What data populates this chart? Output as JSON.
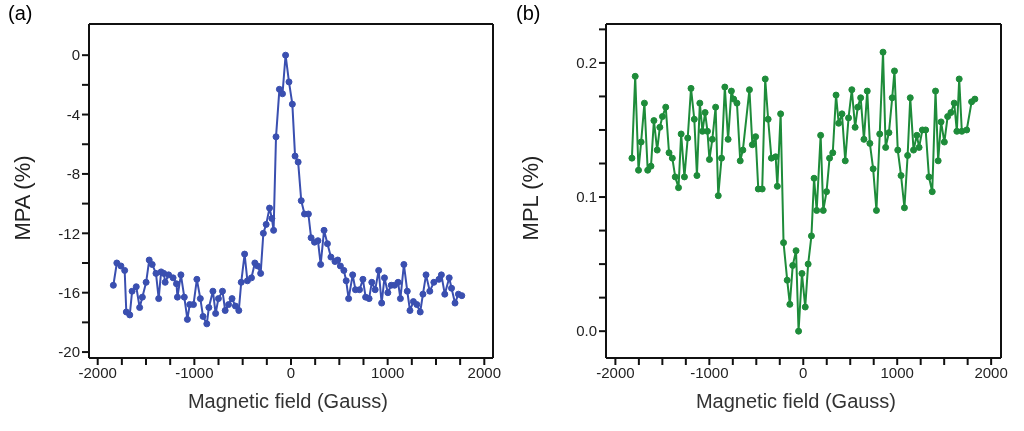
{
  "chart_data": [
    {
      "type": "line",
      "title": "(a)",
      "xlabel": "Magnetic field (Gauss)",
      "ylabel": "MPA (%)",
      "marker": "circle",
      "line_style": "solid",
      "xlim": [
        -2090,
        2090
      ],
      "ylim": [
        -20.4,
        2.1
      ],
      "xticks": [
        {
          "value": -2000,
          "label": "-2000"
        },
        {
          "value": -1750,
          "label": null
        },
        {
          "value": -1500,
          "label": null
        },
        {
          "value": -1250,
          "label": null
        },
        {
          "value": -1000,
          "label": "-1000"
        },
        {
          "value": -750,
          "label": null
        },
        {
          "value": -500,
          "label": null
        },
        {
          "value": -250,
          "label": null
        },
        0,
        {
          "value": 250,
          "label": null
        },
        {
          "value": 500,
          "label": null
        },
        {
          "value": 750,
          "label": null
        },
        1000,
        {
          "value": 1250,
          "label": null
        },
        {
          "value": 1500,
          "label": null
        },
        {
          "value": 1750,
          "label": null
        },
        2000
      ],
      "yticks": [
        0,
        {
          "value": -2,
          "label": null
        },
        -4,
        {
          "value": -6,
          "label": null
        },
        -8,
        {
          "value": -10,
          "label": null
        },
        -12,
        {
          "value": -14,
          "label": null
        },
        -16,
        {
          "value": -18,
          "label": null
        },
        -20
      ],
      "series": [
        {
          "color": "#3a4fb0",
          "x": [
            -1838,
            -1802,
            -1760,
            -1721,
            -1704,
            -1668,
            -1644,
            -1601,
            -1566,
            -1538,
            -1499,
            -1467,
            -1436,
            -1397,
            -1369,
            -1344,
            -1316,
            -1302,
            -1266,
            -1220,
            -1185,
            -1175,
            -1139,
            -1104,
            -1072,
            -1048,
            -1009,
            -974,
            -938,
            -910,
            -871,
            -850,
            -808,
            -780,
            -751,
            -709,
            -681,
            -646,
            -610,
            -575,
            -540,
            -515,
            -480,
            -451,
            -409,
            -374,
            -346,
            -314,
            -286,
            -257,
            -222,
            -198,
            -180,
            -155,
            -120,
            -88,
            -56,
            -21,
            14,
            42,
            74,
            106,
            140,
            180,
            208,
            243,
            279,
            307,
            342,
            377,
            413,
            455,
            483,
            511,
            547,
            571,
            596,
            638,
            667,
            709,
            744,
            772,
            808,
            836,
            871,
            907,
            938,
            967,
            1002,
            1037,
            1072,
            1108,
            1132,
            1168,
            1203,
            1231,
            1266,
            1302,
            1337,
            1365,
            1397,
            1436,
            1478,
            1531,
            1556,
            1591,
            1637,
            1661,
            1697,
            1732,
            1767
          ],
          "values": [
            -15.5,
            -14.0,
            -14.2,
            -14.5,
            -17.3,
            -17.5,
            -15.9,
            -15.6,
            -17.0,
            -16.3,
            -15.3,
            -13.8,
            -14.1,
            -14.7,
            -16.4,
            -14.6,
            -14.7,
            -15.3,
            -14.8,
            -15.0,
            -15.4,
            -16.3,
            -14.8,
            -16.3,
            -17.8,
            -16.8,
            -16.8,
            -15.1,
            -16.4,
            -17.6,
            -18.1,
            -17.0,
            -15.9,
            -17.4,
            -16.4,
            -15.9,
            -17.2,
            -16.8,
            -16.4,
            -16.9,
            -17.2,
            -15.3,
            -13.4,
            -15.2,
            -15.0,
            -14.0,
            -14.2,
            -14.7,
            -12.0,
            -11.4,
            -10.3,
            -11.0,
            -11.8,
            -5.5,
            -2.3,
            -2.6,
            0,
            -1.8,
            -3.3,
            -6.8,
            -7.2,
            -9.8,
            -10.7,
            -10.7,
            -12.3,
            -12.6,
            -12.5,
            -14.1,
            -11.8,
            -12.7,
            -13.6,
            -13.9,
            -13.8,
            -14.2,
            -14.5,
            -15.2,
            -16.4,
            -14.8,
            -15.8,
            -15.8,
            -15.1,
            -16.3,
            -16.4,
            -15.3,
            -15.8,
            -14.5,
            -16.7,
            -15.0,
            -16.0,
            -15.5,
            -15.5,
            -15.3,
            -16.4,
            -14.1,
            -15.9,
            -17.2,
            -16.6,
            -16.8,
            -17.3,
            -16.1,
            -14.8,
            -15.9,
            -15.3,
            -15.1,
            -14.8,
            -16.1,
            -15.0,
            -15.7,
            -16.7,
            -16.1,
            -16.2
          ]
        }
      ]
    },
    {
      "type": "line",
      "title": "(b)",
      "xlabel": "Magnetic field (Gauss)",
      "ylabel": "MPL (%)",
      "marker": "circle",
      "line_style": "solid",
      "xlim": [
        -2100,
        2105
      ],
      "ylim": [
        -0.02,
        0.229
      ],
      "xticks": [
        {
          "value": -2000,
          "label": "-2000"
        },
        {
          "value": -1750,
          "label": null
        },
        {
          "value": -1500,
          "label": null
        },
        {
          "value": -1250,
          "label": null
        },
        {
          "value": -1000,
          "label": "-1000"
        },
        {
          "value": -750,
          "label": null
        },
        {
          "value": -500,
          "label": null
        },
        {
          "value": -250,
          "label": null
        },
        0,
        {
          "value": 250,
          "label": null
        },
        {
          "value": 500,
          "label": null
        },
        {
          "value": 750,
          "label": null
        },
        1000,
        {
          "value": 1250,
          "label": null
        },
        {
          "value": 1500,
          "label": null
        },
        {
          "value": 1750,
          "label": null
        },
        2000
      ],
      "yticks": [
        {
          "value": 0,
          "label": "0.0"
        },
        {
          "value": 0.025,
          "label": null
        },
        {
          "value": 0.05,
          "label": null
        },
        {
          "value": 0.075,
          "label": null
        },
        0.1,
        {
          "value": 0.125,
          "label": null
        },
        {
          "value": 0.15,
          "label": null
        },
        {
          "value": 0.175,
          "label": null
        },
        0.2,
        {
          "value": 0.225,
          "label": null
        }
      ],
      "series": [
        {
          "color": "#1e8c3a",
          "x": [
            -1824,
            -1789,
            -1754,
            -1726,
            -1691,
            -1656,
            -1621,
            -1590,
            -1555,
            -1527,
            -1499,
            -1464,
            -1429,
            -1394,
            -1363,
            -1328,
            -1300,
            -1265,
            -1230,
            -1195,
            -1160,
            -1132,
            -1101,
            -1073,
            -1045,
            -1020,
            -999,
            -968,
            -933,
            -905,
            -870,
            -835,
            -800,
            -765,
            -741,
            -706,
            -671,
            -643,
            -573,
            -542,
            -507,
            -479,
            -437,
            -405,
            -374,
            -339,
            -294,
            -276,
            -241,
            -210,
            -171,
            -143,
            -112,
            -77,
            -50,
            -14,
            21,
            52,
            87,
            115,
            143,
            185,
            213,
            248,
            280,
            314,
            349,
            377,
            412,
            447,
            482,
            517,
            552,
            580,
            611,
            646,
            681,
            709,
            744,
            779,
            814,
            849,
            877,
            912,
            947,
            971,
            1006,
            1041,
            1077,
            1111,
            1139,
            1174,
            1209,
            1233,
            1268,
            1303,
            1338,
            1373,
            1408,
            1436,
            1467,
            1502,
            1537,
            1572,
            1607,
            1635,
            1660,
            1688,
            1740,
            1792,
            1827
          ],
          "values": [
            0.129,
            0.19,
            0.12,
            0.141,
            0.17,
            0.12,
            0.123,
            0.157,
            0.135,
            0.152,
            0.16,
            0.167,
            0.133,
            0.129,
            0.115,
            0.107,
            0.147,
            0.115,
            0.144,
            0.181,
            0.158,
            0.116,
            0.17,
            0.149,
            0.163,
            0.149,
            0.128,
            0.143,
            0.167,
            0.101,
            0.129,
            0.182,
            0.143,
            0.179,
            0.173,
            0.17,
            0.127,
            0.135,
            0.18,
            0.139,
            0.145,
            0.106,
            0.106,
            0.188,
            0.158,
            0.129,
            0.13,
            0.108,
            0.162,
            0.066,
            0.038,
            0.02,
            0.049,
            0.06,
            0.0,
            0.043,
            0.018,
            0.05,
            0.071,
            0.114,
            0.09,
            0.146,
            0.09,
            0.104,
            0.129,
            0.133,
            0.176,
            0.155,
            0.162,
            0.127,
            0.159,
            0.18,
            0.152,
            0.167,
            0.174,
            0.143,
            0.179,
            0.14,
            0.121,
            0.09,
            0.147,
            0.208,
            0.137,
            0.148,
            0.174,
            0.194,
            0.135,
            0.116,
            0.092,
            0.131,
            0.174,
            0.135,
            0.146,
            0.137,
            0.15,
            0.15,
            0.115,
            0.104,
            0.179,
            0.127,
            0.156,
            0.141,
            0.16,
            0.163,
            0.17,
            0.149,
            0.188,
            0.149,
            0.15,
            0.171,
            0.173
          ]
        }
      ]
    }
  ]
}
